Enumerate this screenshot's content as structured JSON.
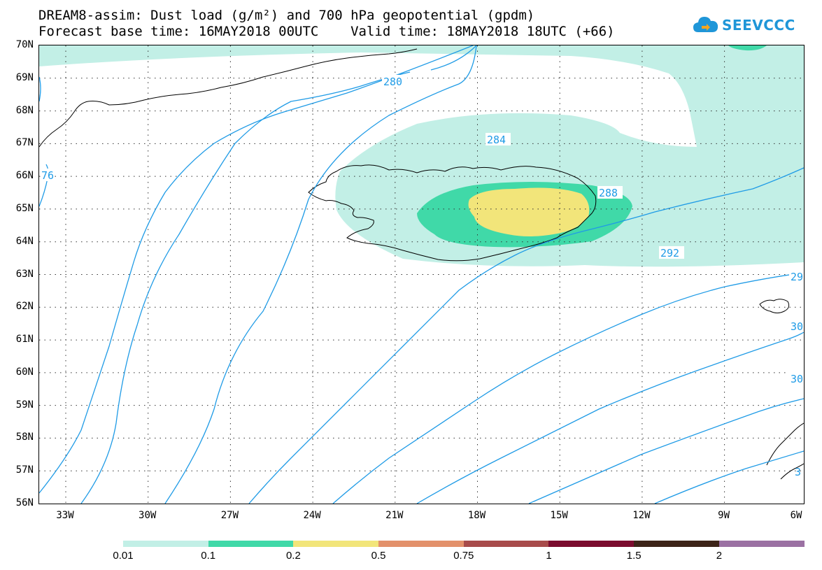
{
  "title": {
    "line1": "DREAM8-assim: Dust load (g/m²) and 700 hPa geopotential (gpdm)",
    "line2": "Forecast base time: 16MAY2018 00UTC    Valid time: 18MAY2018 18UTC (+66)"
  },
  "logo": {
    "text": "SEEVCCC",
    "icon": "cloud-icon"
  },
  "map": {
    "lat_labels": [
      "70N",
      "69N",
      "68N",
      "67N",
      "66N",
      "65N",
      "64N",
      "63N",
      "62N",
      "61N",
      "60N",
      "59N",
      "58N",
      "57N",
      "56N"
    ],
    "lon_labels": [
      "33W",
      "30W",
      "27W",
      "24W",
      "21W",
      "18W",
      "15W",
      "12W",
      "9W",
      "6W"
    ],
    "contour_labels": [
      "280",
      "284",
      "288",
      "292",
      "76",
      "29",
      "30",
      "30",
      "3"
    ],
    "contour_color": "#1f9be6",
    "coast_color": "#000000"
  },
  "legend": {
    "labels": [
      "0.01",
      "0.1",
      "0.2",
      "0.5",
      "0.75",
      "1",
      "1.5",
      "2"
    ],
    "colors": [
      "#c2efe6",
      "#40d9a8",
      "#f2e57a",
      "#e3916b",
      "#a84c4b",
      "#7b0c2e",
      "#3d2418",
      "#9b71a3"
    ]
  }
}
